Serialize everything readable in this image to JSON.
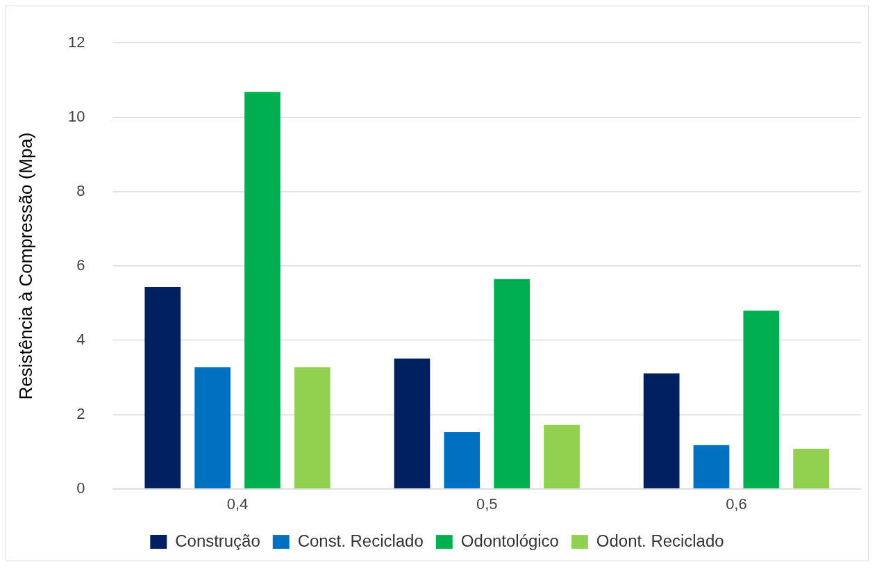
{
  "chart_data": {
    "type": "bar",
    "ylabel": "Resistência à Compressão (Mpa)",
    "categories": [
      "0,4",
      "0,5",
      "0,6"
    ],
    "series": [
      {
        "name": "Construção",
        "color": "#002060",
        "values": [
          5.44,
          3.51,
          3.11
        ]
      },
      {
        "name": "Const. Reciclado",
        "color": "#0070c0",
        "values": [
          3.28,
          1.53,
          1.18
        ]
      },
      {
        "name": "Odontológico",
        "color": "#00b050",
        "values": [
          10.69,
          5.65,
          4.8
        ]
      },
      {
        "name": "Odont. Reciclado",
        "color": "#92d050",
        "values": [
          3.28,
          1.72,
          1.08
        ]
      }
    ],
    "ylim": [
      0,
      12
    ],
    "yticks": [
      0,
      2,
      4,
      6,
      8,
      10,
      12
    ],
    "grid": "y",
    "legend": "bottom"
  }
}
